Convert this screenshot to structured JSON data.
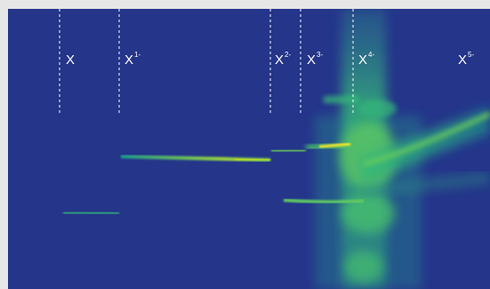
{
  "labels": [
    {
      "base": "X",
      "sup": ""
    },
    {
      "base": "X",
      "sup": "1-"
    },
    {
      "base": "X",
      "sup": "2-"
    },
    {
      "base": "X",
      "sup": "3-"
    },
    {
      "base": "X",
      "sup": "4-"
    },
    {
      "base": "X",
      "sup": "5-"
    }
  ],
  "colors": {
    "background": "#24358a",
    "outer": "#e6e6e6",
    "divider": "#ffffff",
    "trace_low": "#1f9e89",
    "trace_mid": "#6ccd5a",
    "trace_high": "#fde725"
  }
}
